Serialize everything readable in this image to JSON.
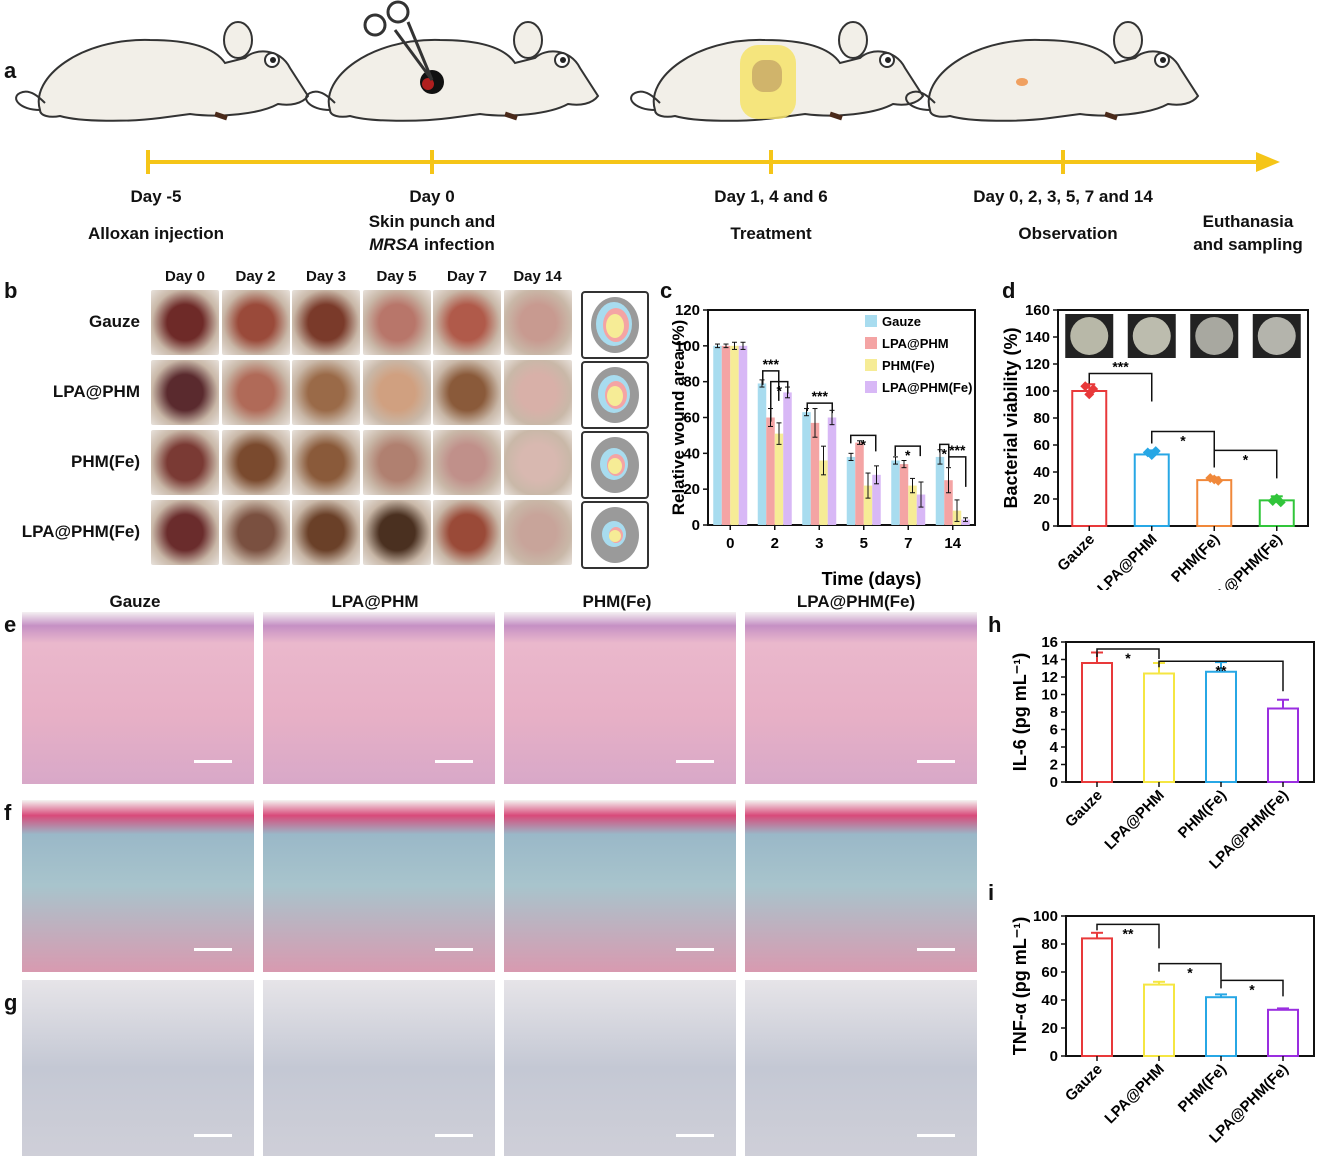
{
  "panels": {
    "a": "a",
    "b": "b",
    "c": "c",
    "d": "d",
    "e": "e",
    "f": "f",
    "g": "g",
    "h": "h",
    "i": "i"
  },
  "timeline": {
    "events": [
      {
        "day": "Day -5",
        "line2": "Alloxan injection",
        "line3": ""
      },
      {
        "day": "Day 0",
        "line2": "Skin punch and",
        "line3_italic": "MRSA",
        "line3": " infection"
      },
      {
        "day": "Day 1, 4 and 6",
        "line2": "Treatment",
        "line3": ""
      },
      {
        "day": "Day 0, 2, 3, 5, 7 and 14",
        "line2": "Observation",
        "line3": ""
      }
    ],
    "end_label": [
      "Euthanasia",
      "and sampling"
    ]
  },
  "colors": {
    "timeline": "#f5c518",
    "gauze": "#e8393a",
    "lpa": "#f5e642",
    "phm": "#27a7e5",
    "lpaphm": "#9a2ee0",
    "orange": "#f0883a",
    "green": "#31c53a",
    "c_gauze": "#a8dcef",
    "c_lpa": "#f4a4a4",
    "c_phm": "#f6ec96",
    "c_lpaphm": "#d8b8f6"
  },
  "panel_b": {
    "days": [
      "Day 0",
      "Day 2",
      "Day 3",
      "Day 5",
      "Day 7",
      "Day 14"
    ],
    "groups": [
      "Gauze",
      "LPA@PHM",
      "PHM(Fe)",
      "LPA@PHM(Fe)"
    ]
  },
  "histology": {
    "groups": [
      "Gauze",
      "LPA@PHM",
      "PHM(Fe)",
      "LPA@PHM(Fe)"
    ]
  },
  "chart_data": [
    {
      "id": "c",
      "type": "bar",
      "xlabel": "Time (days)",
      "ylabel": "Relative wound area (%)",
      "categories": [
        "0",
        "2",
        "3",
        "5",
        "7",
        "14"
      ],
      "ylim": [
        0,
        120
      ],
      "yticks": [
        0,
        20,
        40,
        60,
        80,
        100,
        120
      ],
      "series": [
        {
          "name": "Gauze",
          "values": [
            100,
            79,
            63,
            38,
            36,
            38
          ],
          "err": [
            1,
            2,
            2,
            2,
            2,
            4
          ]
        },
        {
          "name": "LPA@PHM",
          "values": [
            100,
            60,
            57,
            46,
            34,
            25
          ],
          "err": [
            1,
            5,
            8,
            1,
            2,
            7
          ]
        },
        {
          "name": "PHM(Fe)",
          "values": [
            100,
            51,
            36,
            22,
            22,
            8
          ],
          "err": [
            2,
            6,
            8,
            7,
            4,
            6
          ]
        },
        {
          "name": "LPA@PHM(Fe)",
          "values": [
            100,
            74,
            60,
            28,
            17,
            3
          ],
          "err": [
            2,
            3,
            4,
            5,
            7,
            1
          ]
        }
      ],
      "annotations": [
        "***",
        "*",
        "***",
        "*",
        "*",
        "*",
        "***"
      ],
      "legend": "top-right"
    },
    {
      "id": "d",
      "type": "bar",
      "ylabel": "Bacterial viability (%)",
      "categories": [
        "Gauze",
        "LPA@PHM",
        "PHM(Fe)",
        "LPA@PHM(Fe)"
      ],
      "values": [
        100,
        53,
        34,
        19
      ],
      "err": [
        5,
        3,
        2,
        3
      ],
      "ylim": [
        0,
        160
      ],
      "yticks": [
        0,
        20,
        40,
        60,
        80,
        100,
        120,
        140,
        160
      ],
      "annotations": [
        "***",
        "*",
        "*"
      ]
    },
    {
      "id": "h",
      "type": "bar",
      "ylabel": "IL-6 (pg mL⁻¹)",
      "categories": [
        "Gauze",
        "LPA@PHM",
        "PHM(Fe)",
        "LPA@PHM(Fe)"
      ],
      "values": [
        13.6,
        12.4,
        12.6,
        8.4
      ],
      "err": [
        1.2,
        1.2,
        1.1,
        1.0
      ],
      "ylim": [
        0,
        16
      ],
      "yticks": [
        0,
        2,
        4,
        6,
        8,
        10,
        12,
        14,
        16
      ],
      "annotations": [
        "*",
        "**"
      ]
    },
    {
      "id": "i",
      "type": "bar",
      "ylabel": "TNF-α (pg mL⁻¹)",
      "categories": [
        "Gauze",
        "LPA@PHM",
        "PHM(Fe)",
        "LPA@PHM(Fe)"
      ],
      "values": [
        84,
        51,
        42,
        33
      ],
      "err": [
        4,
        2,
        2,
        1
      ],
      "ylim": [
        0,
        100
      ],
      "yticks": [
        0,
        20,
        40,
        60,
        80,
        100
      ],
      "annotations": [
        "**",
        "*",
        "*"
      ]
    }
  ]
}
